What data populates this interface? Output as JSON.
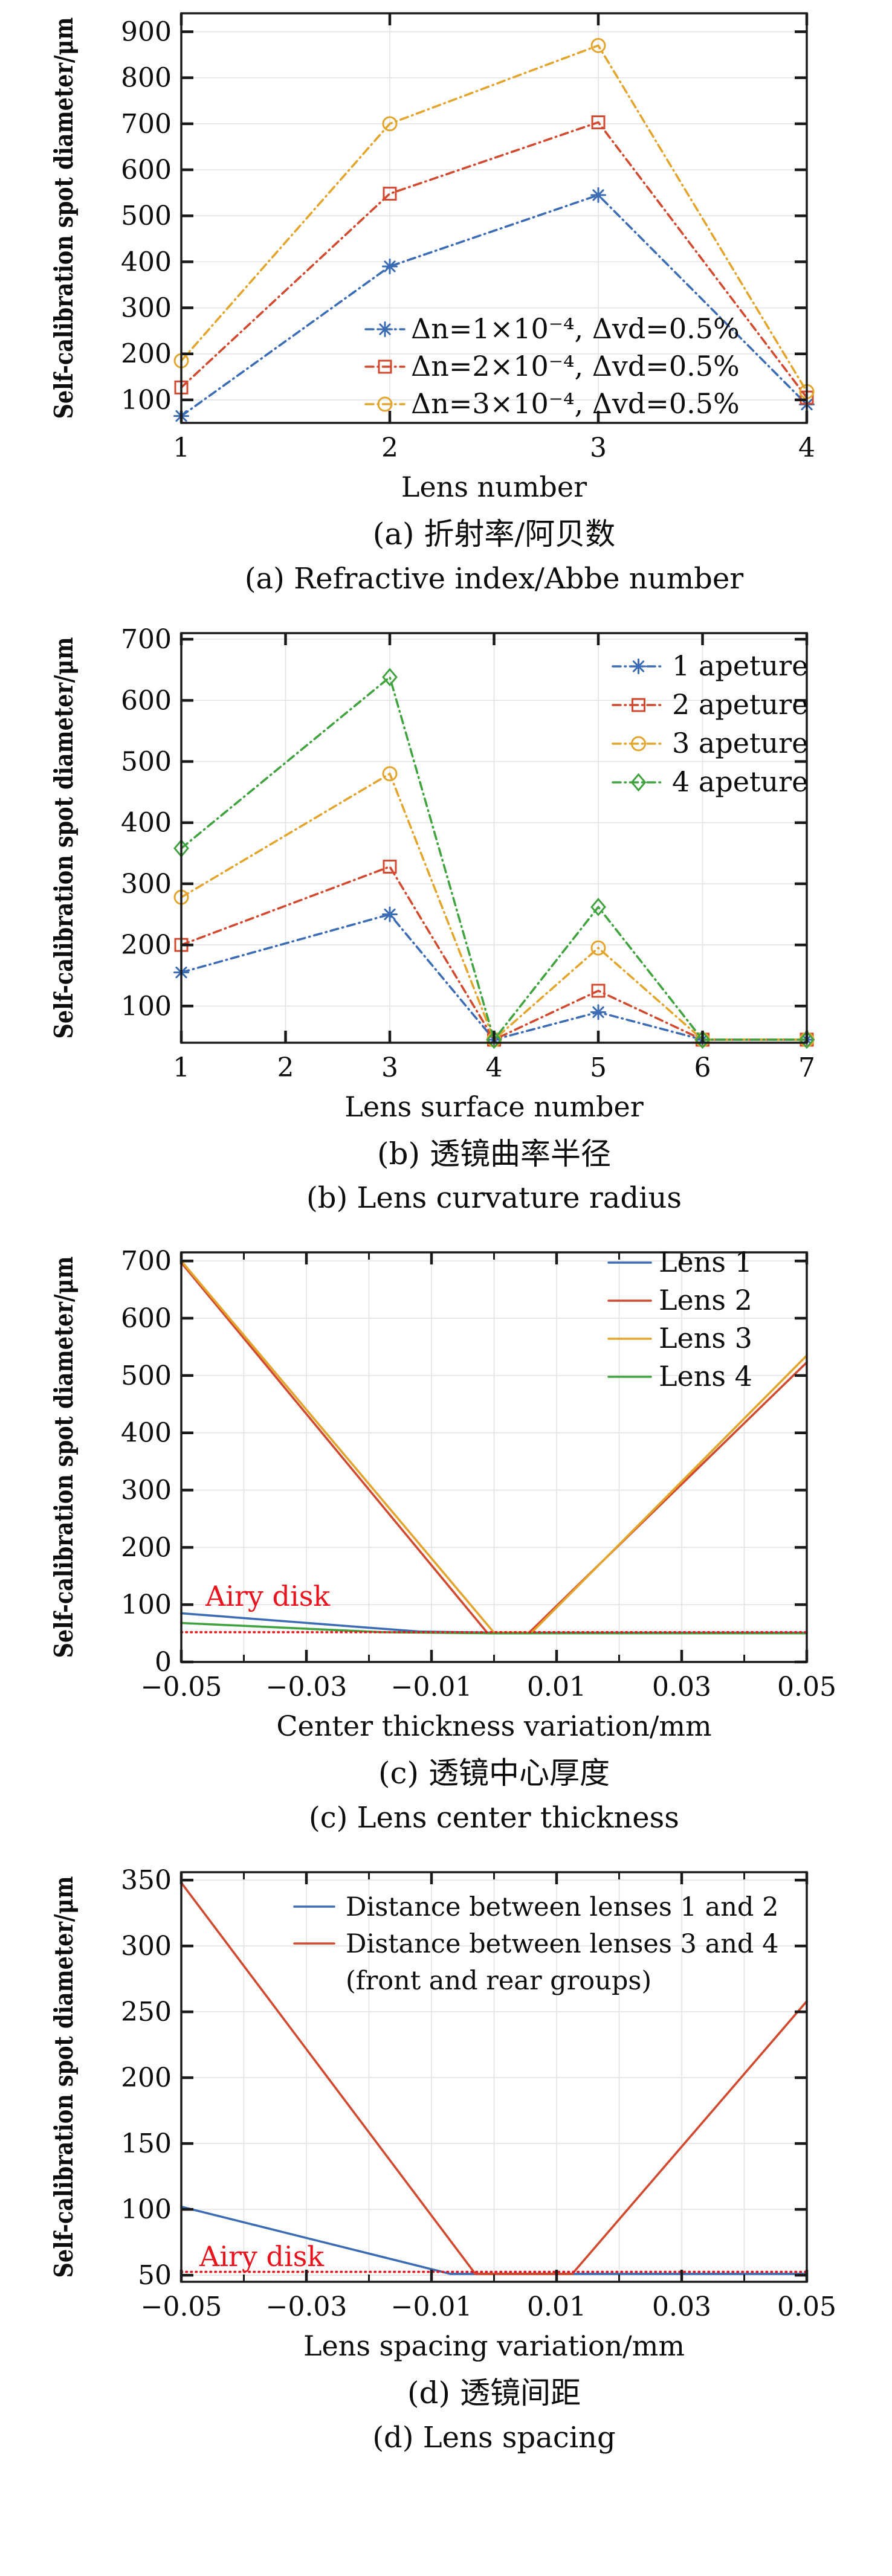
{
  "figure": {
    "background": "#ffffff",
    "axis_color": "#1a1a1a",
    "grid_color": "#e3e3e3"
  },
  "chart_data": [
    {
      "key": "a",
      "type": "line",
      "caption_zh": "(a) 折射率/阿贝数",
      "caption_en": "(a) Refractive index/Abbe number",
      "xlabel": "Lens number",
      "ylabel": "Self-calibration spot diameter/μm",
      "xlim": [
        1,
        4
      ],
      "ylim": [
        50,
        940
      ],
      "xticks": [
        1,
        2,
        3,
        4
      ],
      "xtick_labels": [
        "1",
        "2",
        "3",
        "4"
      ],
      "yticks": [
        100,
        200,
        300,
        400,
        500,
        600,
        700,
        800,
        900
      ],
      "grid": true,
      "legend_position": "inside-lower-center",
      "series": [
        {
          "name": "Δn=1×10⁻⁴, Δvd=0.5%",
          "color": "#3c6cb4",
          "marker": "asterisk",
          "line": "dashdot",
          "points": [
            [
              1,
              65
            ],
            [
              2,
              390
            ],
            [
              3,
              545
            ],
            [
              4,
              90
            ]
          ]
        },
        {
          "name": "Δn=2×10⁻⁴, Δvd=0.5%",
          "color": "#d1492e",
          "marker": "square",
          "line": "dashdot",
          "points": [
            [
              1,
              127
            ],
            [
              2,
              548
            ],
            [
              3,
              703
            ],
            [
              4,
              105
            ]
          ]
        },
        {
          "name": "Δn=3×10⁻⁴, Δvd=0.5%",
          "color": "#e2a52d",
          "marker": "circle",
          "line": "dashdot",
          "points": [
            [
              1,
              185
            ],
            [
              2,
              700
            ],
            [
              3,
              870
            ],
            [
              4,
              118
            ]
          ]
        }
      ]
    },
    {
      "key": "b",
      "type": "line",
      "caption_zh": "(b) 透镜曲率半径",
      "caption_en": "(b) Lens curvature radius",
      "xlabel": "Lens surface number",
      "ylabel": "Self-calibration spot diameter/μm",
      "xlim": [
        1,
        7
      ],
      "ylim": [
        40,
        710
      ],
      "xticks": [
        1,
        2,
        3,
        4,
        5,
        6,
        7
      ],
      "xtick_labels": [
        "1",
        "2",
        "3",
        "4",
        "5",
        "6",
        "7"
      ],
      "yticks": [
        100,
        200,
        300,
        400,
        500,
        600,
        700
      ],
      "grid": true,
      "legend_position": "inside-upper-right",
      "series": [
        {
          "name": "1 apeture",
          "color": "#3c6cb4",
          "marker": "asterisk",
          "line": "dashdot",
          "points": [
            [
              1,
              155
            ],
            [
              3,
              250
            ],
            [
              4,
              45
            ],
            [
              5,
              90
            ],
            [
              6,
              45
            ],
            [
              7,
              45
            ]
          ]
        },
        {
          "name": "2 apeture",
          "color": "#d1492e",
          "marker": "square",
          "line": "dashdot",
          "points": [
            [
              1,
              200
            ],
            [
              3,
              328
            ],
            [
              4,
              45
            ],
            [
              5,
              125
            ],
            [
              6,
              45
            ],
            [
              7,
              45
            ]
          ]
        },
        {
          "name": "3 apeture",
          "color": "#e2a52d",
          "marker": "circle",
          "line": "dashdot",
          "points": [
            [
              1,
              278
            ],
            [
              3,
              480
            ],
            [
              4,
              45
            ],
            [
              5,
              195
            ],
            [
              6,
              45
            ],
            [
              7,
              45
            ]
          ]
        },
        {
          "name": "4 apeture",
          "color": "#41a33f",
          "marker": "diamond",
          "line": "dashdot",
          "points": [
            [
              1,
              358
            ],
            [
              3,
              638
            ],
            [
              4,
              45
            ],
            [
              5,
              262
            ],
            [
              6,
              45
            ],
            [
              7,
              45
            ]
          ]
        }
      ]
    },
    {
      "key": "c",
      "type": "line",
      "caption_zh": "(c) 透镜中心厚度",
      "caption_en": "(c) Lens center thickness",
      "xlabel": "Center thickness variation/mm",
      "ylabel": "Self-calibration spot diameter/μm",
      "xlim": [
        -0.05,
        0.05
      ],
      "ylim": [
        0,
        715
      ],
      "xticks": [
        -0.05,
        -0.03,
        -0.01,
        0.01,
        0.03,
        0.05
      ],
      "xtick_labels": [
        "−0.05",
        "−0.03",
        "−0.01",
        "0.01",
        "0.03",
        "0.05"
      ],
      "xminor_step": 0.01,
      "yticks": [
        0,
        100,
        200,
        300,
        400,
        500,
        600,
        700
      ],
      "grid": true,
      "legend_position": "inside-upper-right",
      "annotation": {
        "text": "Airy disk",
        "color": "#e8131c"
      },
      "series": [
        {
          "name": "Lens 1",
          "color": "#3c6cb4",
          "marker": "none",
          "line": "solid",
          "points": [
            [
              -0.05,
              85
            ],
            [
              -0.012,
              53
            ],
            [
              0,
              51
            ],
            [
              0.05,
              51
            ]
          ]
        },
        {
          "name": "Lens 2",
          "color": "#d1492e",
          "marker": "none",
          "line": "solid",
          "points": [
            [
              -0.05,
              697
            ],
            [
              -0.001,
              50
            ],
            [
              0.0055,
              50
            ],
            [
              0.05,
              523
            ]
          ]
        },
        {
          "name": "Lens 3",
          "color": "#e2a52d",
          "marker": "none",
          "line": "solid",
          "points": [
            [
              -0.05,
              700
            ],
            [
              0,
              51
            ],
            [
              0.006,
              51
            ],
            [
              0.05,
              535
            ]
          ]
        },
        {
          "name": "Lens 4",
          "color": "#41a33f",
          "marker": "none",
          "line": "solid",
          "points": [
            [
              -0.05,
              68
            ],
            [
              -0.018,
              52
            ],
            [
              0,
              50
            ],
            [
              0.05,
              50
            ]
          ]
        },
        {
          "name": "Airy disk",
          "color": "#e8131c",
          "marker": "none",
          "line": "dotted",
          "legend": false,
          "points": [
            [
              -0.05,
              52
            ],
            [
              0.05,
              52
            ]
          ]
        }
      ]
    },
    {
      "key": "d",
      "type": "line",
      "caption_zh": "(d) 透镜间距",
      "caption_en": "(d) Lens spacing",
      "xlabel": "Lens spacing variation/mm",
      "ylabel": "Self-calibration spot diameter/μm",
      "xlim": [
        -0.05,
        0.05
      ],
      "ylim": [
        45,
        356
      ],
      "xticks": [
        -0.05,
        -0.03,
        -0.01,
        0.01,
        0.03,
        0.05
      ],
      "xtick_labels": [
        "−0.05",
        "−0.03",
        "−0.01",
        "0.01",
        "0.03",
        "0.05"
      ],
      "xminor_step": 0.01,
      "yticks": [
        50,
        100,
        150,
        200,
        250,
        300,
        350
      ],
      "grid": true,
      "legend_position": "inside-upper-left",
      "legend_note": "(front and rear groups)",
      "annotation": {
        "text": "Airy disk",
        "color": "#e8131c"
      },
      "series": [
        {
          "name": "Distance between lenses 1 and 2",
          "color": "#3c6cb4",
          "marker": "none",
          "line": "solid",
          "points": [
            [
              -0.05,
              102
            ],
            [
              -0.007,
              51
            ],
            [
              0.05,
              51
            ]
          ]
        },
        {
          "name": "Distance between lenses 3 and 4",
          "color": "#d1492e",
          "marker": "none",
          "line": "solid",
          "points": [
            [
              -0.05,
              348
            ],
            [
              -0.003,
              51
            ],
            [
              0.0125,
              51
            ],
            [
              0.05,
              258
            ]
          ]
        },
        {
          "name": "Airy disk",
          "color": "#e8131c",
          "marker": "none",
          "line": "dotted",
          "legend": false,
          "points": [
            [
              -0.05,
              52.5
            ],
            [
              0.05,
              52.5
            ]
          ]
        }
      ]
    }
  ]
}
